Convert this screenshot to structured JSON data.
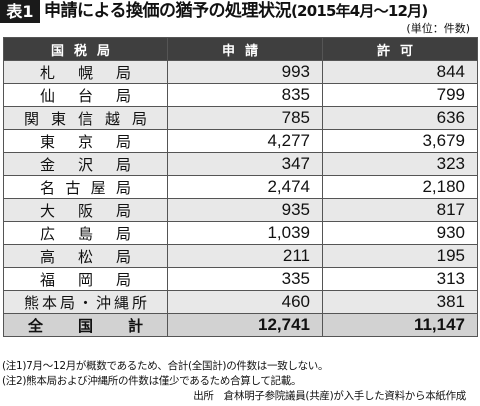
{
  "header": {
    "badge": "表1",
    "title": "申請による換価の猶予の処理状況",
    "period": "(2015年4月〜12月)",
    "unit": "(単位：件数)"
  },
  "table": {
    "columns": [
      "国税局",
      "申請",
      "許可"
    ],
    "rows": [
      {
        "name": "札幌局",
        "application": "993",
        "approval": "844"
      },
      {
        "name": "仙台局",
        "application": "835",
        "approval": "799"
      },
      {
        "name": "関東信越局",
        "application": "785",
        "approval": "636"
      },
      {
        "name": "東京局",
        "application": "4,277",
        "approval": "3,679"
      },
      {
        "name": "金沢局",
        "application": "347",
        "approval": "323"
      },
      {
        "name": "名古屋局",
        "application": "2,474",
        "approval": "2,180"
      },
      {
        "name": "大阪局",
        "application": "935",
        "approval": "817"
      },
      {
        "name": "広島局",
        "application": "1,039",
        "approval": "930"
      },
      {
        "name": "高松局",
        "application": "211",
        "approval": "195"
      },
      {
        "name": "福岡局",
        "application": "335",
        "approval": "313"
      },
      {
        "name": "熊本局・沖縄所",
        "application": "460",
        "approval": "381"
      }
    ],
    "total": {
      "name": "全国計",
      "application": "12,741",
      "approval": "11,147"
    }
  },
  "notes": {
    "note1": "(注1)7月〜12月が概数であるため、合計(全国計)の件数は一致しない。",
    "note2": "(注2)熊本局および沖縄所の件数は僅少であるため合算して記載。",
    "source": "出所　倉林明子参院議員(共産)が入手した資料から本紙作成"
  }
}
